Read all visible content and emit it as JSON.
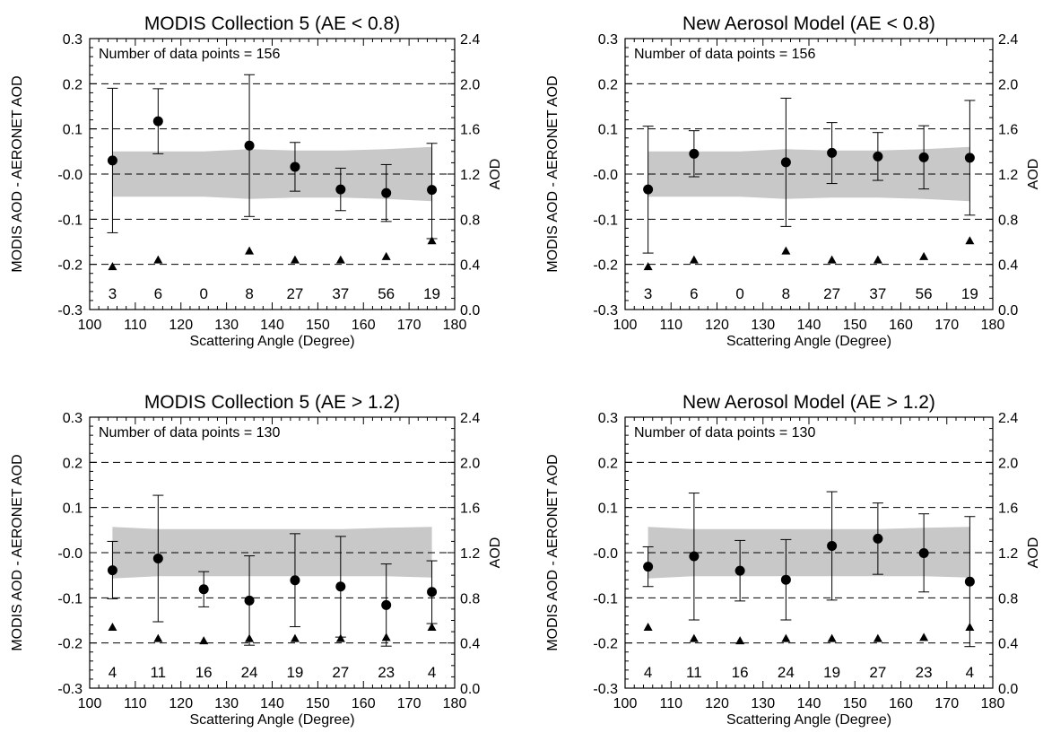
{
  "chart_data": [
    {
      "type": "scatter",
      "title": "MODIS Collection 5 (AE < 0.8)",
      "xlabel": "Scattering Angle (Degree)",
      "ylabel": "MODIS AOD - AERONET AOD",
      "y2label": "AOD",
      "xlim": [
        100,
        180
      ],
      "ylim": [
        -0.3,
        0.3
      ],
      "y2lim": [
        0.0,
        2.4
      ],
      "xticks": [
        "100",
        "110",
        "120",
        "130",
        "140",
        "150",
        "160",
        "170",
        "180"
      ],
      "yticks": [
        "-0.3",
        "-0.2",
        "-0.1",
        "-0.0",
        "0.1",
        "0.2",
        "0.3"
      ],
      "y2ticks": [
        "0.0",
        "0.4",
        "0.8",
        "1.2",
        "1.6",
        "2.0",
        "2.4"
      ],
      "grid": "dashed horizontal at y ticks",
      "annotation": "Number of data points = 156",
      "points": [
        {
          "x": 105,
          "y": 0.03,
          "lo": -0.13,
          "hi": 0.19,
          "aod": 0.38,
          "count": "3"
        },
        {
          "x": 115,
          "y": 0.117,
          "lo": 0.045,
          "hi": 0.189,
          "aod": 0.44,
          "count": "6"
        },
        {
          "x": 125,
          "y": null,
          "lo": null,
          "hi": null,
          "aod": null,
          "count": "0"
        },
        {
          "x": 135,
          "y": 0.063,
          "lo": -0.094,
          "hi": 0.22,
          "aod": 0.52,
          "count": "8"
        },
        {
          "x": 145,
          "y": 0.016,
          "lo": -0.038,
          "hi": 0.07,
          "aod": 0.44,
          "count": "27"
        },
        {
          "x": 155,
          "y": -0.034,
          "lo": -0.081,
          "hi": 0.013,
          "aod": 0.44,
          "count": "37"
        },
        {
          "x": 165,
          "y": -0.042,
          "lo": -0.105,
          "hi": 0.021,
          "aod": 0.47,
          "count": "56"
        },
        {
          "x": 175,
          "y": -0.035,
          "lo": -0.143,
          "hi": 0.068,
          "aod": 0.61,
          "count": "19"
        }
      ],
      "band": {
        "x": [
          105,
          115,
          125,
          135,
          145,
          155,
          165,
          175
        ],
        "upper": [
          0.05,
          0.05,
          0.05,
          0.055,
          0.052,
          0.052,
          0.055,
          0.06
        ],
        "lower": [
          -0.05,
          -0.05,
          -0.05,
          -0.055,
          -0.052,
          -0.052,
          -0.055,
          -0.06
        ]
      }
    },
    {
      "type": "scatter",
      "title": "New Aerosol Model (AE < 0.8)",
      "xlabel": "Scattering Angle (Degree)",
      "ylabel": "MODIS AOD - AERONET AOD",
      "y2label": "AOD",
      "xlim": [
        100,
        180
      ],
      "ylim": [
        -0.3,
        0.3
      ],
      "y2lim": [
        0.0,
        2.4
      ],
      "xticks": [
        "100",
        "110",
        "120",
        "130",
        "140",
        "150",
        "160",
        "170",
        "180"
      ],
      "yticks": [
        "-0.3",
        "-0.2",
        "-0.1",
        "-0.0",
        "0.1",
        "0.2",
        "0.3"
      ],
      "y2ticks": [
        "0.0",
        "0.4",
        "0.8",
        "1.2",
        "1.6",
        "2.0",
        "2.4"
      ],
      "grid": "dashed horizontal at y ticks",
      "annotation": "Number of data points = 156",
      "points": [
        {
          "x": 105,
          "y": -0.034,
          "lo": -0.175,
          "hi": 0.106,
          "aod": 0.38,
          "count": "3"
        },
        {
          "x": 115,
          "y": 0.045,
          "lo": -0.006,
          "hi": 0.096,
          "aod": 0.44,
          "count": "6"
        },
        {
          "x": 125,
          "y": null,
          "lo": null,
          "hi": null,
          "aod": null,
          "count": "0"
        },
        {
          "x": 135,
          "y": 0.026,
          "lo": -0.116,
          "hi": 0.168,
          "aod": 0.52,
          "count": "8"
        },
        {
          "x": 145,
          "y": 0.047,
          "lo": -0.021,
          "hi": 0.114,
          "aod": 0.44,
          "count": "27"
        },
        {
          "x": 155,
          "y": 0.039,
          "lo": -0.014,
          "hi": 0.092,
          "aod": 0.44,
          "count": "37"
        },
        {
          "x": 165,
          "y": 0.037,
          "lo": -0.033,
          "hi": 0.107,
          "aod": 0.47,
          "count": "56"
        },
        {
          "x": 175,
          "y": 0.036,
          "lo": -0.091,
          "hi": 0.163,
          "aod": 0.61,
          "count": "19"
        }
      ],
      "band": {
        "x": [
          105,
          115,
          125,
          135,
          145,
          155,
          165,
          175
        ],
        "upper": [
          0.05,
          0.05,
          0.05,
          0.055,
          0.052,
          0.052,
          0.055,
          0.06
        ],
        "lower": [
          -0.05,
          -0.05,
          -0.05,
          -0.055,
          -0.052,
          -0.052,
          -0.055,
          -0.06
        ]
      }
    },
    {
      "type": "scatter",
      "title": "MODIS Collection 5 (AE > 1.2)",
      "xlabel": "Scattering Angle (Degree)",
      "ylabel": "MODIS AOD - AERONET AOD",
      "y2label": "AOD",
      "xlim": [
        100,
        180
      ],
      "ylim": [
        -0.3,
        0.3
      ],
      "y2lim": [
        0.0,
        2.4
      ],
      "xticks": [
        "100",
        "110",
        "120",
        "130",
        "140",
        "150",
        "160",
        "170",
        "180"
      ],
      "yticks": [
        "-0.3",
        "-0.2",
        "-0.1",
        "-0.0",
        "0.1",
        "0.2",
        "0.3"
      ],
      "y2ticks": [
        "0.0",
        "0.4",
        "0.8",
        "1.2",
        "1.6",
        "2.0",
        "2.4"
      ],
      "grid": "dashed horizontal at y ticks",
      "annotation": "Number of data points = 130",
      "points": [
        {
          "x": 105,
          "y": -0.039,
          "lo": -0.102,
          "hi": 0.025,
          "aod": 0.54,
          "count": "4"
        },
        {
          "x": 115,
          "y": -0.013,
          "lo": -0.153,
          "hi": 0.127,
          "aod": 0.44,
          "count": "11"
        },
        {
          "x": 125,
          "y": -0.081,
          "lo": -0.12,
          "hi": -0.042,
          "aod": 0.42,
          "count": "16"
        },
        {
          "x": 135,
          "y": -0.106,
          "lo": -0.205,
          "hi": -0.007,
          "aod": 0.44,
          "count": "24"
        },
        {
          "x": 145,
          "y": -0.061,
          "lo": -0.164,
          "hi": 0.042,
          "aod": 0.44,
          "count": "19"
        },
        {
          "x": 155,
          "y": -0.075,
          "lo": -0.187,
          "hi": 0.036,
          "aod": 0.44,
          "count": "27"
        },
        {
          "x": 165,
          "y": -0.116,
          "lo": -0.207,
          "hi": -0.025,
          "aod": 0.45,
          "count": "23"
        },
        {
          "x": 175,
          "y": -0.087,
          "lo": -0.157,
          "hi": -0.018,
          "aod": 0.54,
          "count": "4"
        }
      ],
      "band": {
        "x": [
          105,
          115,
          125,
          135,
          145,
          155,
          165,
          175
        ],
        "upper": [
          0.057,
          0.052,
          0.052,
          0.052,
          0.052,
          0.052,
          0.055,
          0.057
        ],
        "lower": [
          -0.057,
          -0.052,
          -0.052,
          -0.052,
          -0.052,
          -0.052,
          -0.052,
          -0.055
        ]
      }
    },
    {
      "type": "scatter",
      "title": "New Aerosol Model (AE > 1.2)",
      "xlabel": "Scattering Angle (Degree)",
      "ylabel": "MODIS AOD - AERONET AOD",
      "y2label": "AOD",
      "xlim": [
        100,
        180
      ],
      "ylim": [
        -0.3,
        0.3
      ],
      "y2lim": [
        0.0,
        2.4
      ],
      "xticks": [
        "100",
        "110",
        "120",
        "130",
        "140",
        "150",
        "160",
        "170",
        "180"
      ],
      "yticks": [
        "-0.3",
        "-0.2",
        "-0.1",
        "-0.0",
        "0.1",
        "0.2",
        "0.3"
      ],
      "y2ticks": [
        "0.0",
        "0.4",
        "0.8",
        "1.2",
        "1.6",
        "2.0",
        "2.4"
      ],
      "grid": "dashed horizontal at y ticks",
      "annotation": "Number of data points = 130",
      "points": [
        {
          "x": 105,
          "y": -0.031,
          "lo": -0.075,
          "hi": 0.013,
          "aod": 0.54,
          "count": "4"
        },
        {
          "x": 115,
          "y": -0.008,
          "lo": -0.149,
          "hi": 0.132,
          "aod": 0.44,
          "count": "11"
        },
        {
          "x": 125,
          "y": -0.04,
          "lo": -0.107,
          "hi": 0.027,
          "aod": 0.42,
          "count": "16"
        },
        {
          "x": 135,
          "y": -0.06,
          "lo": -0.149,
          "hi": 0.029,
          "aod": 0.44,
          "count": "24"
        },
        {
          "x": 145,
          "y": 0.015,
          "lo": -0.105,
          "hi": 0.135,
          "aod": 0.44,
          "count": "19"
        },
        {
          "x": 155,
          "y": 0.031,
          "lo": -0.048,
          "hi": 0.11,
          "aod": 0.44,
          "count": "27"
        },
        {
          "x": 165,
          "y": -0.001,
          "lo": -0.087,
          "hi": 0.086,
          "aod": 0.45,
          "count": "23"
        },
        {
          "x": 175,
          "y": -0.064,
          "lo": -0.208,
          "hi": 0.08,
          "aod": 0.54,
          "count": "4"
        }
      ],
      "band": {
        "x": [
          105,
          115,
          125,
          135,
          145,
          155,
          165,
          175
        ],
        "upper": [
          0.057,
          0.052,
          0.052,
          0.052,
          0.052,
          0.052,
          0.055,
          0.057
        ],
        "lower": [
          -0.057,
          -0.052,
          -0.052,
          -0.052,
          -0.052,
          -0.052,
          -0.052,
          -0.055
        ]
      }
    }
  ],
  "colors": {
    "band": "#c8c8c8",
    "ink": "#000000",
    "background": "#ffffff"
  }
}
